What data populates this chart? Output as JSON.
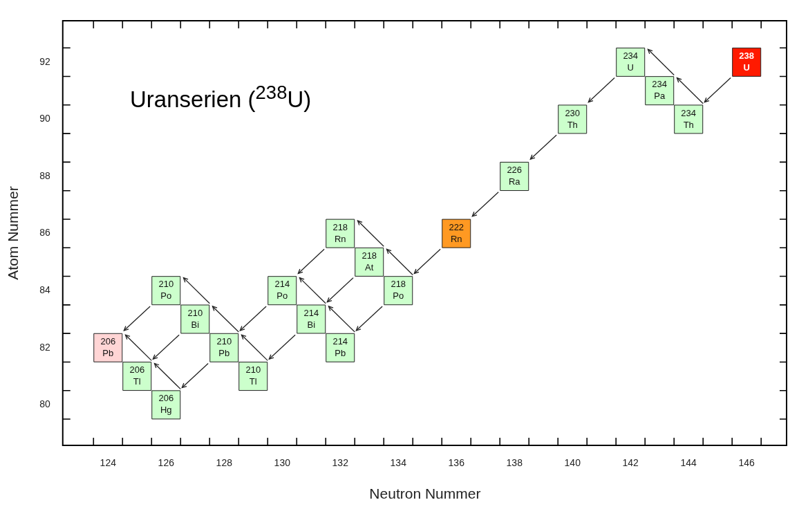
{
  "chart_data": {
    "type": "scatter",
    "title": "Uranserien ($^{238}$U)",
    "xlabel": "Neutron Nummer",
    "ylabel": "Atom Nummer",
    "x": [
      146,
      144,
      143,
      142,
      140,
      138,
      136,
      134,
      133,
      132,
      132,
      131,
      130,
      129,
      128,
      127,
      126,
      126,
      125,
      124
    ],
    "values": [
      92,
      90,
      91,
      92,
      90,
      88,
      86,
      84,
      85,
      86,
      82,
      83,
      84,
      81,
      82,
      83,
      84,
      80,
      81,
      82
    ],
    "colors": [
      "#ff1a00",
      "#ccffcc",
      "#ccffcc",
      "#ccffcc",
      "#ccffcc",
      "#ccffcc",
      "#ff9922",
      "#ccffcc",
      "#ccffcc",
      "#ccffcc",
      "#ccffcc",
      "#ccffcc",
      "#ccffcc",
      "#ccffcc",
      "#ccffcc",
      "#ccffcc",
      "#ccffcc",
      "#ccffcc",
      "#ccffcc",
      "#ffd5d5"
    ],
    "annotations": [
      {
        "text": "238\nU",
        "x": 146,
        "y": 92
      },
      {
        "text": "234\nTh",
        "x": 144,
        "y": 90
      },
      {
        "text": "234\nPa",
        "x": 143,
        "y": 91
      },
      {
        "text": "234\nU",
        "x": 142,
        "y": 92
      },
      {
        "text": "230\nTh",
        "x": 140,
        "y": 90
      },
      {
        "text": "226\nRa",
        "x": 138,
        "y": 88
      },
      {
        "text": "222\nRn",
        "x": 136,
        "y": 86
      },
      {
        "text": "218\nPo",
        "x": 134,
        "y": 84
      },
      {
        "text": "218\nAt",
        "x": 133,
        "y": 85
      },
      {
        "text": "218\nRn",
        "x": 132,
        "y": 86
      },
      {
        "text": "214\nPb",
        "x": 132,
        "y": 82
      },
      {
        "text": "214\nBi",
        "x": 131,
        "y": 83
      },
      {
        "text": "214\nPo",
        "x": 130,
        "y": 84
      },
      {
        "text": "210\nTl",
        "x": 129,
        "y": 81
      },
      {
        "text": "210\nPb",
        "x": 128,
        "y": 82
      },
      {
        "text": "210\nBi",
        "x": 127,
        "y": 83
      },
      {
        "text": "210\nPo",
        "x": 126,
        "y": 84
      },
      {
        "text": "206\nHg",
        "x": 126,
        "y": 80
      },
      {
        "text": "206\nTl",
        "x": 125,
        "y": 81
      },
      {
        "text": "206\nPb",
        "x": 124,
        "y": 82
      }
    ],
    "marker": "square",
    "grid": false,
    "legend": false,
    "xlim": [
      122.44,
      147.4
    ],
    "ylim": [
      78.58,
      93.45
    ],
    "xticks": [
      {
        "value": 123.5,
        "label": null
      },
      124,
      {
        "value": 124.5,
        "label": null
      },
      {
        "value": 125.5,
        "label": null
      },
      126,
      {
        "value": 126.5,
        "label": null
      },
      {
        "value": 127.5,
        "label": null
      },
      128,
      {
        "value": 128.5,
        "label": null
      },
      {
        "value": 129.5,
        "label": null
      },
      130,
      {
        "value": 130.5,
        "label": null
      },
      {
        "value": 131.5,
        "label": null
      },
      132,
      {
        "value": 132.5,
        "label": null
      },
      {
        "value": 133.5,
        "label": null
      },
      134,
      {
        "value": 134.5,
        "label": null
      },
      {
        "value": 135.5,
        "label": null
      },
      136,
      {
        "value": 136.5,
        "label": null
      },
      {
        "value": 137.5,
        "label": null
      },
      138,
      {
        "value": 138.5,
        "label": null
      },
      {
        "value": 139.5,
        "label": null
      },
      140,
      {
        "value": 140.5,
        "label": null
      },
      {
        "value": 141.5,
        "label": null
      },
      142,
      {
        "value": 142.5,
        "label": null
      },
      {
        "value": 143.5,
        "label": null
      },
      144,
      {
        "value": 144.5,
        "label": null
      },
      {
        "value": 145.5,
        "label": null
      },
      146,
      {
        "value": 146.5,
        "label": null
      }
    ],
    "yticks": [
      {
        "value": 79.5,
        "label": null
      },
      80,
      {
        "value": 80.5,
        "label": null
      },
      {
        "value": 81.5,
        "label": null
      },
      82,
      {
        "value": 82.5,
        "label": null
      },
      {
        "value": 83.5,
        "label": null
      },
      84,
      {
        "value": 84.5,
        "label": null
      },
      {
        "value": 85.5,
        "label": null
      },
      86,
      {
        "value": 86.5,
        "label": null
      },
      {
        "value": 87.5,
        "label": null
      },
      88,
      {
        "value": 88.5,
        "label": null
      },
      {
        "value": 89.5,
        "label": null
      },
      90,
      {
        "value": 90.5,
        "label": null
      },
      {
        "value": 91.5,
        "label": null
      },
      92,
      {
        "value": 92.5,
        "label": null
      }
    ]
  }
}
